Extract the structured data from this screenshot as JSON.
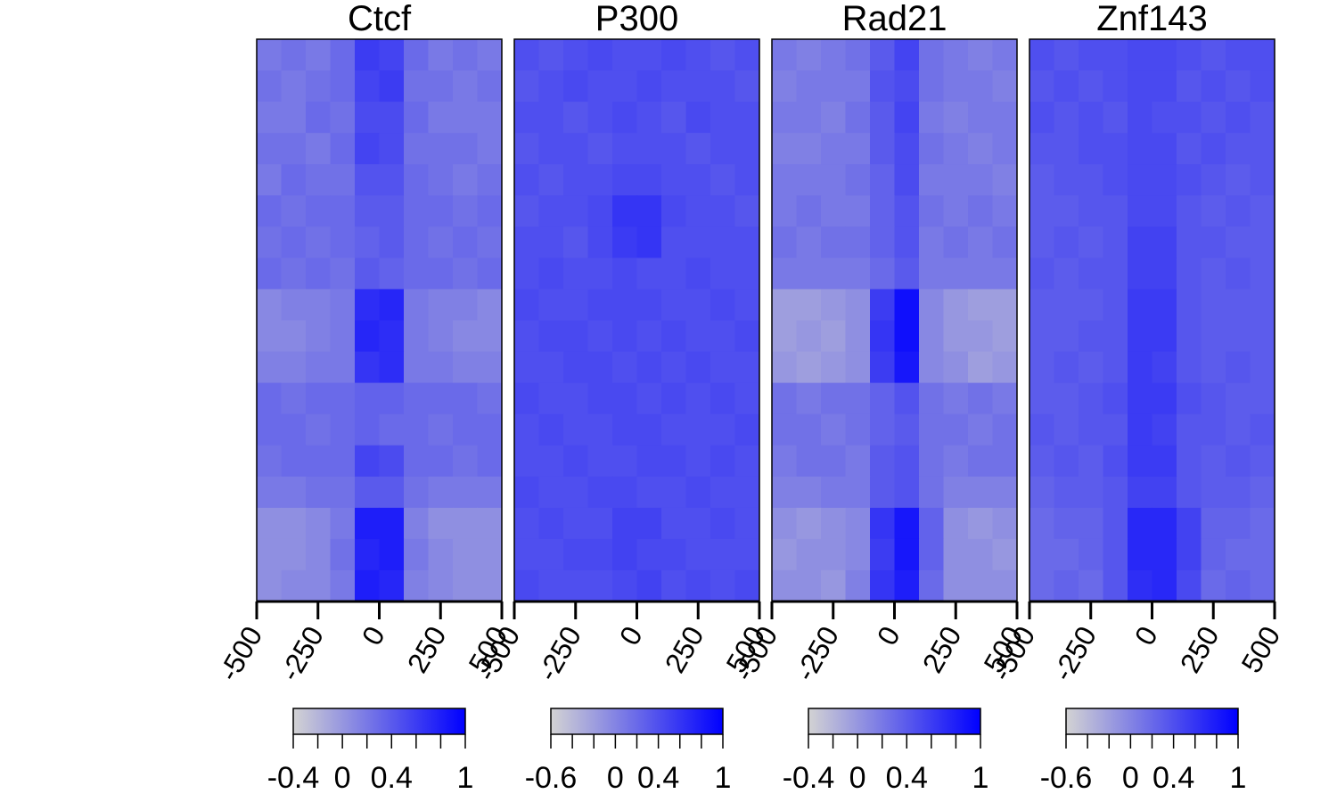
{
  "chart_data": [
    {
      "type": "heatmap",
      "title": "Ctcf",
      "xlim": [
        -500,
        500
      ],
      "xticks": [
        -500,
        -250,
        0,
        250,
        500
      ],
      "colors": [
        "#d3d3d3",
        "#0000ff"
      ],
      "zlim": [
        -0.4,
        1
      ],
      "cticks": [
        -0.4,
        0,
        0.4,
        1
      ],
      "cminor": [
        -0.2,
        0.2,
        0.6,
        0.8
      ],
      "z": [
        [
          0.2,
          0.25,
          0.2,
          0.3,
          0.6,
          0.55,
          0.3,
          0.2,
          0.25,
          0.2
        ],
        [
          0.25,
          0.2,
          0.25,
          0.3,
          0.55,
          0.6,
          0.25,
          0.25,
          0.2,
          0.25
        ],
        [
          0.2,
          0.2,
          0.3,
          0.25,
          0.5,
          0.5,
          0.3,
          0.2,
          0.2,
          0.2
        ],
        [
          0.25,
          0.25,
          0.2,
          0.3,
          0.55,
          0.5,
          0.25,
          0.25,
          0.25,
          0.2
        ],
        [
          0.2,
          0.3,
          0.25,
          0.25,
          0.45,
          0.45,
          0.3,
          0.25,
          0.2,
          0.25
        ],
        [
          0.3,
          0.25,
          0.3,
          0.3,
          0.4,
          0.4,
          0.3,
          0.3,
          0.25,
          0.3
        ],
        [
          0.25,
          0.3,
          0.25,
          0.3,
          0.35,
          0.4,
          0.3,
          0.25,
          0.3,
          0.25
        ],
        [
          0.3,
          0.25,
          0.3,
          0.25,
          0.4,
          0.35,
          0.3,
          0.3,
          0.25,
          0.3
        ],
        [
          0.1,
          0.15,
          0.15,
          0.2,
          0.7,
          0.75,
          0.2,
          0.15,
          0.15,
          0.1
        ],
        [
          0.1,
          0.1,
          0.15,
          0.2,
          0.75,
          0.7,
          0.2,
          0.15,
          0.1,
          0.1
        ],
        [
          0.15,
          0.15,
          0.2,
          0.2,
          0.65,
          0.7,
          0.2,
          0.2,
          0.15,
          0.15
        ],
        [
          0.3,
          0.25,
          0.3,
          0.3,
          0.35,
          0.35,
          0.3,
          0.3,
          0.3,
          0.25
        ],
        [
          0.3,
          0.3,
          0.25,
          0.3,
          0.35,
          0.3,
          0.3,
          0.25,
          0.3,
          0.3
        ],
        [
          0.25,
          0.3,
          0.3,
          0.3,
          0.55,
          0.5,
          0.3,
          0.3,
          0.25,
          0.3
        ],
        [
          0.2,
          0.2,
          0.25,
          0.25,
          0.4,
          0.4,
          0.25,
          0.2,
          0.2,
          0.2
        ],
        [
          0.05,
          0.05,
          0.1,
          0.2,
          0.8,
          0.8,
          0.15,
          0.05,
          0.05,
          0.05
        ],
        [
          0.05,
          0.05,
          0.1,
          0.25,
          0.75,
          0.8,
          0.2,
          0.1,
          0.05,
          0.05
        ],
        [
          0.05,
          0.1,
          0.1,
          0.2,
          0.8,
          0.75,
          0.15,
          0.1,
          0.05,
          0.05
        ]
      ]
    },
    {
      "type": "heatmap",
      "title": "P300",
      "xlim": [
        -500,
        500
      ],
      "xticks": [
        -500,
        -250,
        0,
        250,
        500
      ],
      "colors": [
        "#d3d3d3",
        "#0000ff"
      ],
      "zlim": [
        -0.6,
        1
      ],
      "cticks": [
        -0.6,
        0,
        0.4,
        1
      ],
      "cminor": [
        -0.4,
        -0.2,
        0.2,
        0.6,
        0.8
      ],
      "z": [
        [
          0.4,
          0.35,
          0.4,
          0.45,
          0.4,
          0.4,
          0.45,
          0.4,
          0.35,
          0.4
        ],
        [
          0.35,
          0.4,
          0.45,
          0.4,
          0.4,
          0.45,
          0.4,
          0.4,
          0.4,
          0.35
        ],
        [
          0.4,
          0.4,
          0.35,
          0.4,
          0.45,
          0.4,
          0.35,
          0.45,
          0.4,
          0.4
        ],
        [
          0.35,
          0.4,
          0.4,
          0.35,
          0.4,
          0.4,
          0.4,
          0.35,
          0.4,
          0.4
        ],
        [
          0.4,
          0.35,
          0.4,
          0.4,
          0.45,
          0.45,
          0.4,
          0.4,
          0.35,
          0.4
        ],
        [
          0.35,
          0.4,
          0.4,
          0.45,
          0.6,
          0.6,
          0.45,
          0.4,
          0.4,
          0.35
        ],
        [
          0.4,
          0.4,
          0.35,
          0.45,
          0.55,
          0.6,
          0.4,
          0.4,
          0.4,
          0.4
        ],
        [
          0.4,
          0.45,
          0.4,
          0.4,
          0.45,
          0.4,
          0.4,
          0.45,
          0.4,
          0.4
        ],
        [
          0.45,
          0.4,
          0.4,
          0.45,
          0.45,
          0.45,
          0.4,
          0.4,
          0.45,
          0.4
        ],
        [
          0.4,
          0.45,
          0.45,
          0.4,
          0.45,
          0.4,
          0.45,
          0.4,
          0.4,
          0.45
        ],
        [
          0.4,
          0.4,
          0.45,
          0.45,
          0.4,
          0.45,
          0.4,
          0.45,
          0.4,
          0.4
        ],
        [
          0.45,
          0.4,
          0.4,
          0.45,
          0.45,
          0.4,
          0.45,
          0.4,
          0.45,
          0.4
        ],
        [
          0.4,
          0.45,
          0.4,
          0.4,
          0.45,
          0.45,
          0.4,
          0.4,
          0.4,
          0.45
        ],
        [
          0.4,
          0.4,
          0.45,
          0.4,
          0.4,
          0.45,
          0.45,
          0.4,
          0.45,
          0.4
        ],
        [
          0.45,
          0.4,
          0.4,
          0.45,
          0.45,
          0.4,
          0.4,
          0.45,
          0.4,
          0.4
        ],
        [
          0.4,
          0.45,
          0.4,
          0.4,
          0.5,
          0.5,
          0.4,
          0.4,
          0.45,
          0.4
        ],
        [
          0.4,
          0.4,
          0.45,
          0.45,
          0.5,
          0.45,
          0.45,
          0.4,
          0.4,
          0.4
        ],
        [
          0.45,
          0.4,
          0.4,
          0.4,
          0.45,
          0.5,
          0.4,
          0.45,
          0.4,
          0.45
        ]
      ]
    },
    {
      "type": "heatmap",
      "title": "Rad21",
      "xlim": [
        -500,
        500
      ],
      "xticks": [
        -500,
        -250,
        0,
        250,
        500
      ],
      "colors": [
        "#d3d3d3",
        "#0000ff"
      ],
      "zlim": [
        -0.4,
        1
      ],
      "cticks": [
        -0.4,
        0,
        0.4,
        1
      ],
      "cminor": [
        -0.2,
        0.2,
        0.6,
        0.8
      ],
      "z": [
        [
          0.2,
          0.15,
          0.2,
          0.25,
          0.4,
          0.55,
          0.25,
          0.2,
          0.15,
          0.2
        ],
        [
          0.15,
          0.2,
          0.2,
          0.2,
          0.45,
          0.5,
          0.25,
          0.2,
          0.2,
          0.15
        ],
        [
          0.2,
          0.2,
          0.15,
          0.25,
          0.4,
          0.55,
          0.2,
          0.15,
          0.2,
          0.2
        ],
        [
          0.15,
          0.15,
          0.2,
          0.2,
          0.4,
          0.5,
          0.25,
          0.2,
          0.15,
          0.2
        ],
        [
          0.2,
          0.2,
          0.2,
          0.25,
          0.35,
          0.5,
          0.2,
          0.2,
          0.2,
          0.15
        ],
        [
          0.2,
          0.25,
          0.2,
          0.2,
          0.35,
          0.45,
          0.25,
          0.2,
          0.25,
          0.2
        ],
        [
          0.25,
          0.2,
          0.25,
          0.25,
          0.35,
          0.45,
          0.2,
          0.25,
          0.2,
          0.25
        ],
        [
          0.2,
          0.2,
          0.2,
          0.2,
          0.3,
          0.4,
          0.2,
          0.2,
          0.2,
          0.2
        ],
        [
          -0.05,
          -0.05,
          0,
          0.05,
          0.6,
          0.9,
          0.1,
          0,
          -0.05,
          -0.05
        ],
        [
          -0.05,
          0,
          -0.05,
          0.05,
          0.65,
          0.9,
          0.1,
          0,
          0,
          -0.05
        ],
        [
          0,
          -0.05,
          0,
          0.05,
          0.6,
          0.85,
          0.1,
          0.05,
          -0.05,
          0
        ],
        [
          0.25,
          0.2,
          0.25,
          0.25,
          0.35,
          0.45,
          0.25,
          0.2,
          0.25,
          0.2
        ],
        [
          0.25,
          0.25,
          0.2,
          0.25,
          0.35,
          0.4,
          0.25,
          0.25,
          0.2,
          0.25
        ],
        [
          0.2,
          0.25,
          0.25,
          0.2,
          0.4,
          0.45,
          0.25,
          0.2,
          0.25,
          0.25
        ],
        [
          0.15,
          0.15,
          0.2,
          0.2,
          0.4,
          0.45,
          0.25,
          0.15,
          0.15,
          0.15
        ],
        [
          0.05,
          0,
          0.05,
          0.1,
          0.65,
          0.85,
          0.35,
          0.05,
          0,
          0.05
        ],
        [
          0,
          0.05,
          0.05,
          0.1,
          0.6,
          0.85,
          0.35,
          0.05,
          0.05,
          0
        ],
        [
          0.05,
          0.05,
          0,
          0.15,
          0.65,
          0.8,
          0.3,
          0.05,
          0.05,
          0.05
        ]
      ]
    },
    {
      "type": "heatmap",
      "title": "Znf143",
      "xlim": [
        -500,
        500
      ],
      "xticks": [
        -500,
        -250,
        0,
        250,
        500
      ],
      "colors": [
        "#d3d3d3",
        "#0000ff"
      ],
      "zlim": [
        -0.6,
        1
      ],
      "cticks": [
        -0.6,
        0,
        0.4,
        1
      ],
      "cminor": [
        -0.4,
        -0.2,
        0.2,
        0.6,
        0.8
      ],
      "z": [
        [
          0.4,
          0.35,
          0.4,
          0.4,
          0.45,
          0.45,
          0.4,
          0.35,
          0.4,
          0.4
        ],
        [
          0.35,
          0.4,
          0.35,
          0.4,
          0.45,
          0.45,
          0.35,
          0.4,
          0.35,
          0.4
        ],
        [
          0.4,
          0.35,
          0.4,
          0.35,
          0.45,
          0.4,
          0.4,
          0.35,
          0.4,
          0.35
        ],
        [
          0.35,
          0.35,
          0.4,
          0.4,
          0.45,
          0.45,
          0.35,
          0.4,
          0.35,
          0.35
        ],
        [
          0.3,
          0.35,
          0.35,
          0.4,
          0.45,
          0.45,
          0.4,
          0.35,
          0.3,
          0.35
        ],
        [
          0.3,
          0.3,
          0.35,
          0.35,
          0.45,
          0.45,
          0.35,
          0.3,
          0.35,
          0.3
        ],
        [
          0.3,
          0.35,
          0.3,
          0.35,
          0.5,
          0.5,
          0.35,
          0.35,
          0.3,
          0.3
        ],
        [
          0.35,
          0.3,
          0.35,
          0.35,
          0.5,
          0.5,
          0.35,
          0.3,
          0.35,
          0.3
        ],
        [
          0.3,
          0.3,
          0.3,
          0.35,
          0.55,
          0.55,
          0.35,
          0.3,
          0.3,
          0.3
        ],
        [
          0.3,
          0.3,
          0.35,
          0.35,
          0.55,
          0.55,
          0.35,
          0.3,
          0.3,
          0.3
        ],
        [
          0.3,
          0.35,
          0.3,
          0.35,
          0.55,
          0.5,
          0.35,
          0.3,
          0.35,
          0.3
        ],
        [
          0.3,
          0.3,
          0.35,
          0.4,
          0.55,
          0.55,
          0.4,
          0.35,
          0.3,
          0.3
        ],
        [
          0.35,
          0.3,
          0.35,
          0.35,
          0.55,
          0.5,
          0.35,
          0.35,
          0.3,
          0.35
        ],
        [
          0.3,
          0.35,
          0.3,
          0.4,
          0.55,
          0.55,
          0.35,
          0.3,
          0.35,
          0.3
        ],
        [
          0.25,
          0.3,
          0.3,
          0.35,
          0.5,
          0.5,
          0.35,
          0.3,
          0.3,
          0.25
        ],
        [
          0.2,
          0.25,
          0.25,
          0.35,
          0.7,
          0.7,
          0.5,
          0.25,
          0.25,
          0.2
        ],
        [
          0.2,
          0.2,
          0.25,
          0.35,
          0.7,
          0.7,
          0.5,
          0.25,
          0.2,
          0.2
        ],
        [
          0.2,
          0.25,
          0.2,
          0.35,
          0.65,
          0.7,
          0.45,
          0.2,
          0.25,
          0.2
        ]
      ]
    }
  ]
}
